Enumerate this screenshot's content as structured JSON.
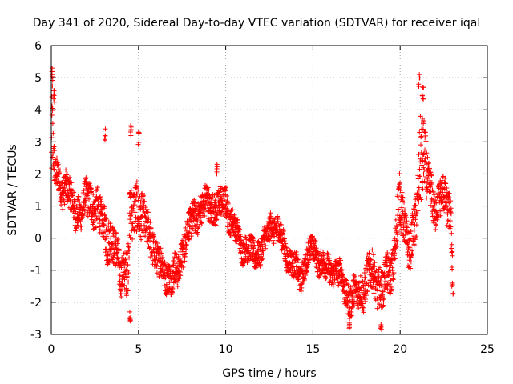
{
  "chart_data": {
    "type": "scatter",
    "title": "Day 341 of 2020, Sidereal Day-to-day VTEC variation (SDTVAR) for receiver iqal",
    "xlabel": "GPS time / hours",
    "ylabel": "SDTVAR / TECUs",
    "xlim": [
      0,
      25
    ],
    "ylim": [
      -3,
      6
    ],
    "x_ticks": [
      0,
      5,
      10,
      15,
      20,
      25
    ],
    "x_tick_labels": [
      "0",
      "5",
      "10",
      "15",
      "20",
      "25"
    ],
    "y_ticks": [
      -3,
      -2,
      -1,
      0,
      1,
      2,
      3,
      4,
      5,
      6
    ],
    "y_tick_labels": [
      "-3",
      "-2",
      "-1",
      "0",
      "1",
      "2",
      "3",
      "4",
      "5",
      "6"
    ],
    "grid": true,
    "marker": "+",
    "color": "#ff0000",
    "series": [
      {
        "name": "SDTVAR",
        "trend": {
          "x": [
            0.0,
            0.05,
            0.1,
            0.2,
            0.3,
            0.5,
            0.8,
            1.0,
            1.2,
            1.5,
            1.8,
            2.0,
            2.2,
            2.5,
            2.8,
            3.0,
            3.2,
            3.5,
            3.8,
            4.0,
            4.2,
            4.4,
            4.5,
            4.7,
            5.0,
            5.2,
            5.5,
            5.8,
            6.0,
            6.3,
            6.6,
            7.0,
            7.3,
            7.6,
            8.0,
            8.3,
            8.6,
            9.0,
            9.3,
            9.6,
            10.0,
            10.3,
            10.6,
            11.0,
            11.3,
            11.6,
            12.0,
            12.3,
            12.6,
            13.0,
            13.3,
            13.6,
            14.0,
            14.3,
            14.6,
            15.0,
            15.3,
            15.6,
            16.0,
            16.3,
            16.6,
            17.0,
            17.3,
            17.6,
            18.0,
            18.3,
            18.6,
            19.0,
            19.3,
            19.6,
            19.8,
            20.0,
            20.3,
            20.6,
            21.0,
            21.2,
            21.4,
            21.6,
            21.8,
            22.0,
            22.3,
            22.6,
            22.9,
            23.0
          ],
          "y": [
            2.4,
            3.2,
            2.5,
            1.9,
            2.0,
            1.7,
            1.6,
            1.4,
            1.0,
            0.9,
            0.8,
            1.2,
            1.3,
            1.0,
            0.6,
            0.4,
            0.3,
            -0.2,
            -0.7,
            -1.0,
            -0.9,
            -1.0,
            0.2,
            0.9,
            1.2,
            0.5,
            0.2,
            0.0,
            -0.6,
            -0.9,
            -1.1,
            -1.2,
            -1.0,
            -0.1,
            0.4,
            0.8,
            0.9,
            1.1,
            1.0,
            0.9,
            1.2,
            0.5,
            0.2,
            -0.3,
            -0.4,
            -0.5,
            -0.4,
            -0.1,
            0.5,
            0.2,
            -0.2,
            -0.6,
            -1.0,
            -1.2,
            -0.7,
            -0.3,
            -0.6,
            -0.9,
            -1.0,
            -1.0,
            -1.2,
            -1.8,
            -1.9,
            -1.7,
            -1.4,
            -1.1,
            -1.3,
            -1.6,
            -1.2,
            -0.8,
            0.5,
            0.9,
            0.3,
            -0.3,
            0.7,
            3.3,
            2.7,
            1.7,
            1.1,
            0.9,
            1.5,
            1.0,
            0.7,
            -0.5
          ],
          "spread": [
            0.9,
            1.8,
            0.8,
            0.5,
            0.5,
            0.5,
            0.5,
            0.5,
            0.5,
            0.5,
            0.5,
            0.5,
            0.6,
            0.6,
            0.6,
            0.5,
            0.8,
            0.6,
            0.6,
            0.6,
            0.6,
            0.8,
            0.9,
            0.8,
            0.8,
            0.7,
            0.6,
            0.6,
            0.5,
            0.5,
            0.5,
            0.5,
            0.5,
            0.5,
            0.5,
            0.5,
            0.5,
            0.5,
            0.5,
            0.5,
            0.5,
            0.4,
            0.4,
            0.4,
            0.4,
            0.4,
            0.4,
            0.4,
            0.4,
            0.4,
            0.4,
            0.4,
            0.4,
            0.4,
            0.4,
            0.4,
            0.4,
            0.4,
            0.4,
            0.4,
            0.4,
            0.5,
            0.5,
            0.5,
            0.6,
            0.6,
            0.6,
            0.6,
            0.6,
            0.6,
            0.8,
            0.8,
            0.6,
            0.6,
            0.8,
            1.6,
            1.0,
            0.7,
            0.6,
            0.6,
            0.6,
            0.6,
            0.6,
            0.6
          ]
        },
        "extremes": [
          {
            "x": 0.05,
            "y": 5.3
          },
          {
            "x": 0.15,
            "y": 4.6
          },
          {
            "x": 3.1,
            "y": 3.4
          },
          {
            "x": 4.5,
            "y": -2.3
          },
          {
            "x": 4.55,
            "y": 3.5
          },
          {
            "x": 5.0,
            "y": 3.3
          },
          {
            "x": 9.5,
            "y": 2.3
          },
          {
            "x": 17.1,
            "y": -2.5
          },
          {
            "x": 18.9,
            "y": -2.7
          },
          {
            "x": 21.1,
            "y": 5.1
          },
          {
            "x": 21.3,
            "y": 4.7
          },
          {
            "x": 23.0,
            "y": -1.4
          }
        ]
      }
    ]
  }
}
